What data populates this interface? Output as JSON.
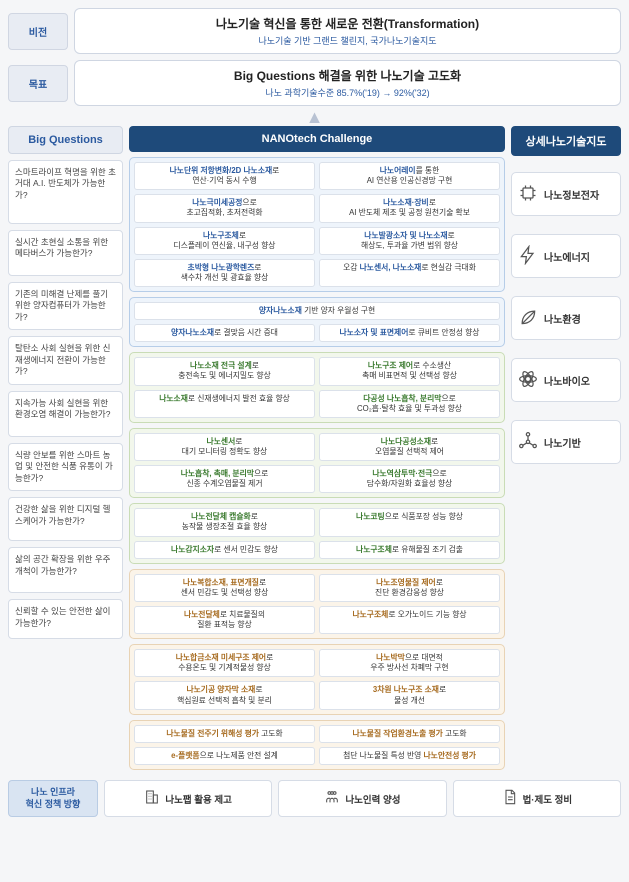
{
  "header": {
    "vision_label": "비전",
    "vision_title": "나노기술 혁신을 통한 새로운 전환(Transformation)",
    "vision_sub": "나노기술 기반 그랜드 챌린지, 국가나노기술지도",
    "goal_label": "목표",
    "goal_title": "Big Questions 해결을 위한 나노기술 고도화",
    "goal_sub": "나노 과학기술수준 85.7%('19) → 92%('32)"
  },
  "col_heads": {
    "left": "Big Questions",
    "mid": "NANOtech Challenge",
    "right": "상세나노기술지도"
  },
  "questions": [
    "스마트라이프 혁명을 위한 초거대 A.I. 반도체가 가능한가?",
    "실시간 초현실 소통을 위한 메타버스가 가능한가?",
    "기존의 미해결 난제를 풀기 위한 양자컴퓨터가 가능한가?",
    "탈탄소 사회 실현을 위한 신재생에너지 전환이 가능한가?",
    "지속가능 사회 실현을 위한 환경오염 해결이 가능한가?",
    "식량 안보를 위한 스마트 농업 및 안전한 식품 유통이 가능한가?",
    "건강한 삶을 위한 디지털 헬스케어가 가능한가?",
    "삶의 공간 확장을 위한 우주 개척이 가능한가?",
    "신뢰할 수 있는 안전한 삶이 가능한가?"
  ],
  "groups": [
    {
      "cls": "c1 g-blue",
      "rows": [
        {
          "l": "<span class='hl'>나노단위 저항변화/2D 나노소재</span>로<br>연산·기억 동시 수행",
          "r": "<span class='hl'>나노어레이</span>를 통한<br>AI 연산용 인공신경망 구현"
        },
        {
          "l": "<span class='hl'>나노극미세공정</span>으로<br>초고집적화, 초저전력화",
          "r": "<span class='hl'>나노소재·장비</span>로<br>AI 반도체 제조 및 공정 원천기술 확보"
        },
        {
          "l": "<span class='hl'>나노구조체</span>로<br>디스플레이 연신율, 내구성 향상",
          "r": "<span class='hl'>나노발광소자 및 나노소재</span>로<br>해상도, 투과율 가변 범위 향상"
        },
        {
          "l": "<span class='hl'>초박형 나노광학렌즈</span>로<br>색수차 개선 및 광효율 향상",
          "r": "오감 <span class='hl'>나노센서, 나노소재</span>로 현실감 극대화"
        }
      ]
    },
    {
      "cls": "c2 g-blue",
      "rows": [
        {
          "full": "<span class='hl'>양자나노소재</span> 기반 양자 우월성 구현"
        },
        {
          "l": "<span class='hl'>양자나노소재</span>로 결맞음 시간 증대",
          "r": "<span class='hl'>나노소자 및 표면제어</span>로 큐비트 안정성 향상"
        }
      ]
    },
    {
      "cls": "c3 g-green",
      "rows": [
        {
          "l": "<span class='hl'>나노소재 전극 설계</span>로<br>충전속도 및 에너지밀도 향상",
          "r": "<span class='hl'>나노구조 제어</span>로 수소생산<br>촉매 비표면적 및 선택성 향상"
        },
        {
          "l": "<span class='hl'>나노소재</span>로 신재생에너지 발전 효율 향상",
          "r": "<span class='hl'>다공성 나노흡착, 분리막</span>으로<br>CO₂흡·탈착 효율 및 투과성 향상"
        }
      ]
    },
    {
      "cls": "c3 g-green",
      "rows": [
        {
          "l": "<span class='hl'>나노센서</span>로<br>대기 모니터링 정확도 향상",
          "r": "<span class='hl'>나노다공성소재</span>로<br>오염물질 선택적 제어"
        },
        {
          "l": "<span class='hl'>나노흡착, 촉매, 분리막</span>으로<br>신종 수계오염물질 제거",
          "r": "<span class='hl'>나노역삼투막·전극</span>으로<br>담수화/자원화 효율성 향상"
        }
      ]
    },
    {
      "cls": "c4 g-green",
      "rows": [
        {
          "l": "<span class='hl'>나노전달체 캡슐화</span>로<br>농작물 생장조절 효율 향상",
          "r": "<span class='hl'>나노코팅</span>으로 식품포장 성능 향상"
        },
        {
          "l": "<span class='hl'>나노감지소자</span>로 센서 민감도 향상",
          "r": "<span class='hl'>나노구조체</span>로 유해물질 조기 검출"
        }
      ]
    },
    {
      "cls": "c5 g-orange",
      "rows": [
        {
          "l": "<span class='hl'>나노복합소재, 표면개질</span>로<br>센서 민감도 및 선택성 향상",
          "r": "<span class='hl'>나노조영물질 제어</span>로<br>진단 환경감응성 향상"
        },
        {
          "l": "<span class='hl'>나노전달체</span>로 치료물질의<br>질환 표적능 향상",
          "r": "<span class='hl'>나노구조체</span>로 오가노이드 기능 향상"
        }
      ]
    },
    {
      "cls": "c5 g-orange",
      "rows": [
        {
          "l": "<span class='hl'>나노합금소재 미세구조 제어</span>로<br>수용온도 및 기계적물성 향상",
          "r": "<span class='hl'>나노박막</span>으로 대면적<br>우주 방사선 차폐막 구현"
        },
        {
          "l": "<span class='hl'>나노기공 양자막 소재</span>로<br>핵심원료 선택적 흡착 및 분리",
          "r": "<span class='hl'>3차원 나노구조 소재</span>로<br>물성 개선"
        }
      ]
    },
    {
      "cls": "c6 g-orange",
      "rows": [
        {
          "l": "<span class='hl'>나노물질 전주기 위해성 평가</span> 고도화",
          "r": "<span class='hl'>나노물질 작업환경노출 평가</span> 고도화"
        },
        {
          "l": "<span class='hl'>e-플랫폼</span>으로 나노제품 안전 설계",
          "r": "첨단 나노물질 특성 반영 <span class='hl'>나노안전성 평가</span>"
        }
      ]
    }
  ],
  "categories": [
    {
      "label": "나노정보전자",
      "icon": "chip"
    },
    {
      "label": "나노에너지",
      "icon": "bolt"
    },
    {
      "label": "나노환경",
      "icon": "leaf"
    },
    {
      "label": "나노바이오",
      "icon": "bio"
    },
    {
      "label": "나노기반",
      "icon": "net"
    }
  ],
  "bottom": {
    "lead": "나노 인프라<br>혁신 정책 방향",
    "items": [
      {
        "label": "나노팹 활용 제고",
        "icon": "building"
      },
      {
        "label": "나노인력 양성",
        "icon": "people"
      },
      {
        "label": "법·제도 정비",
        "icon": "doc"
      }
    ]
  },
  "style": {
    "bg": "#f5f6f8",
    "head_blue": "#2d5a96",
    "head_dark": "#1e4a7a",
    "accent_blue": "#2b5aa0",
    "accent_green": "#3a7a2e",
    "accent_orange": "#a66a1e"
  }
}
